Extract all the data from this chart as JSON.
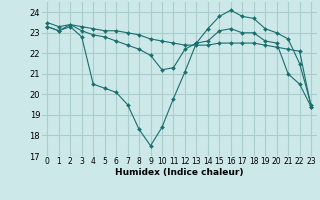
{
  "xlabel": "Humidex (Indice chaleur)",
  "bg_color": "#cce8e8",
  "grid_color": "#aacccc",
  "line_color": "#1a6e6e",
  "xlim": [
    -0.5,
    23.5
  ],
  "ylim": [
    17,
    24.5
  ],
  "xticks": [
    0,
    1,
    2,
    3,
    4,
    5,
    6,
    7,
    8,
    9,
    10,
    11,
    12,
    13,
    14,
    15,
    16,
    17,
    18,
    19,
    20,
    21,
    22,
    23
  ],
  "yticks": [
    17,
    18,
    19,
    20,
    21,
    22,
    23,
    24
  ],
  "line1_x": [
    0,
    1,
    2,
    3,
    4,
    5,
    6,
    7,
    8,
    9,
    10,
    11,
    12,
    13,
    14,
    15,
    16,
    17,
    18,
    19,
    20,
    21,
    22,
    23
  ],
  "line1_y": [
    23.3,
    23.1,
    23.3,
    22.8,
    20.5,
    20.3,
    20.1,
    19.5,
    18.3,
    17.5,
    18.4,
    19.8,
    21.1,
    22.5,
    22.6,
    23.1,
    23.2,
    23.0,
    23.0,
    22.6,
    22.5,
    21.0,
    20.5,
    19.4
  ],
  "line2_x": [
    0,
    1,
    2,
    3,
    4,
    5,
    6,
    7,
    8,
    9,
    10,
    11,
    12,
    13,
    14,
    15,
    16,
    17,
    18,
    19,
    20,
    21,
    22,
    23
  ],
  "line2_y": [
    23.5,
    23.3,
    23.4,
    23.3,
    23.2,
    23.1,
    23.1,
    23.0,
    22.9,
    22.7,
    22.6,
    22.5,
    22.4,
    22.4,
    22.4,
    22.5,
    22.5,
    22.5,
    22.5,
    22.4,
    22.3,
    22.2,
    22.1,
    19.4
  ],
  "line3_x": [
    0,
    1,
    2,
    3,
    4,
    5,
    6,
    7,
    8,
    9,
    10,
    11,
    12,
    13,
    14,
    15,
    16,
    17,
    18,
    19,
    20,
    21,
    22,
    23
  ],
  "line3_y": [
    23.3,
    23.1,
    23.4,
    23.1,
    22.9,
    22.8,
    22.6,
    22.4,
    22.2,
    21.9,
    21.2,
    21.3,
    22.2,
    22.5,
    23.2,
    23.8,
    24.1,
    23.8,
    23.7,
    23.2,
    23.0,
    22.7,
    21.5,
    19.5
  ]
}
